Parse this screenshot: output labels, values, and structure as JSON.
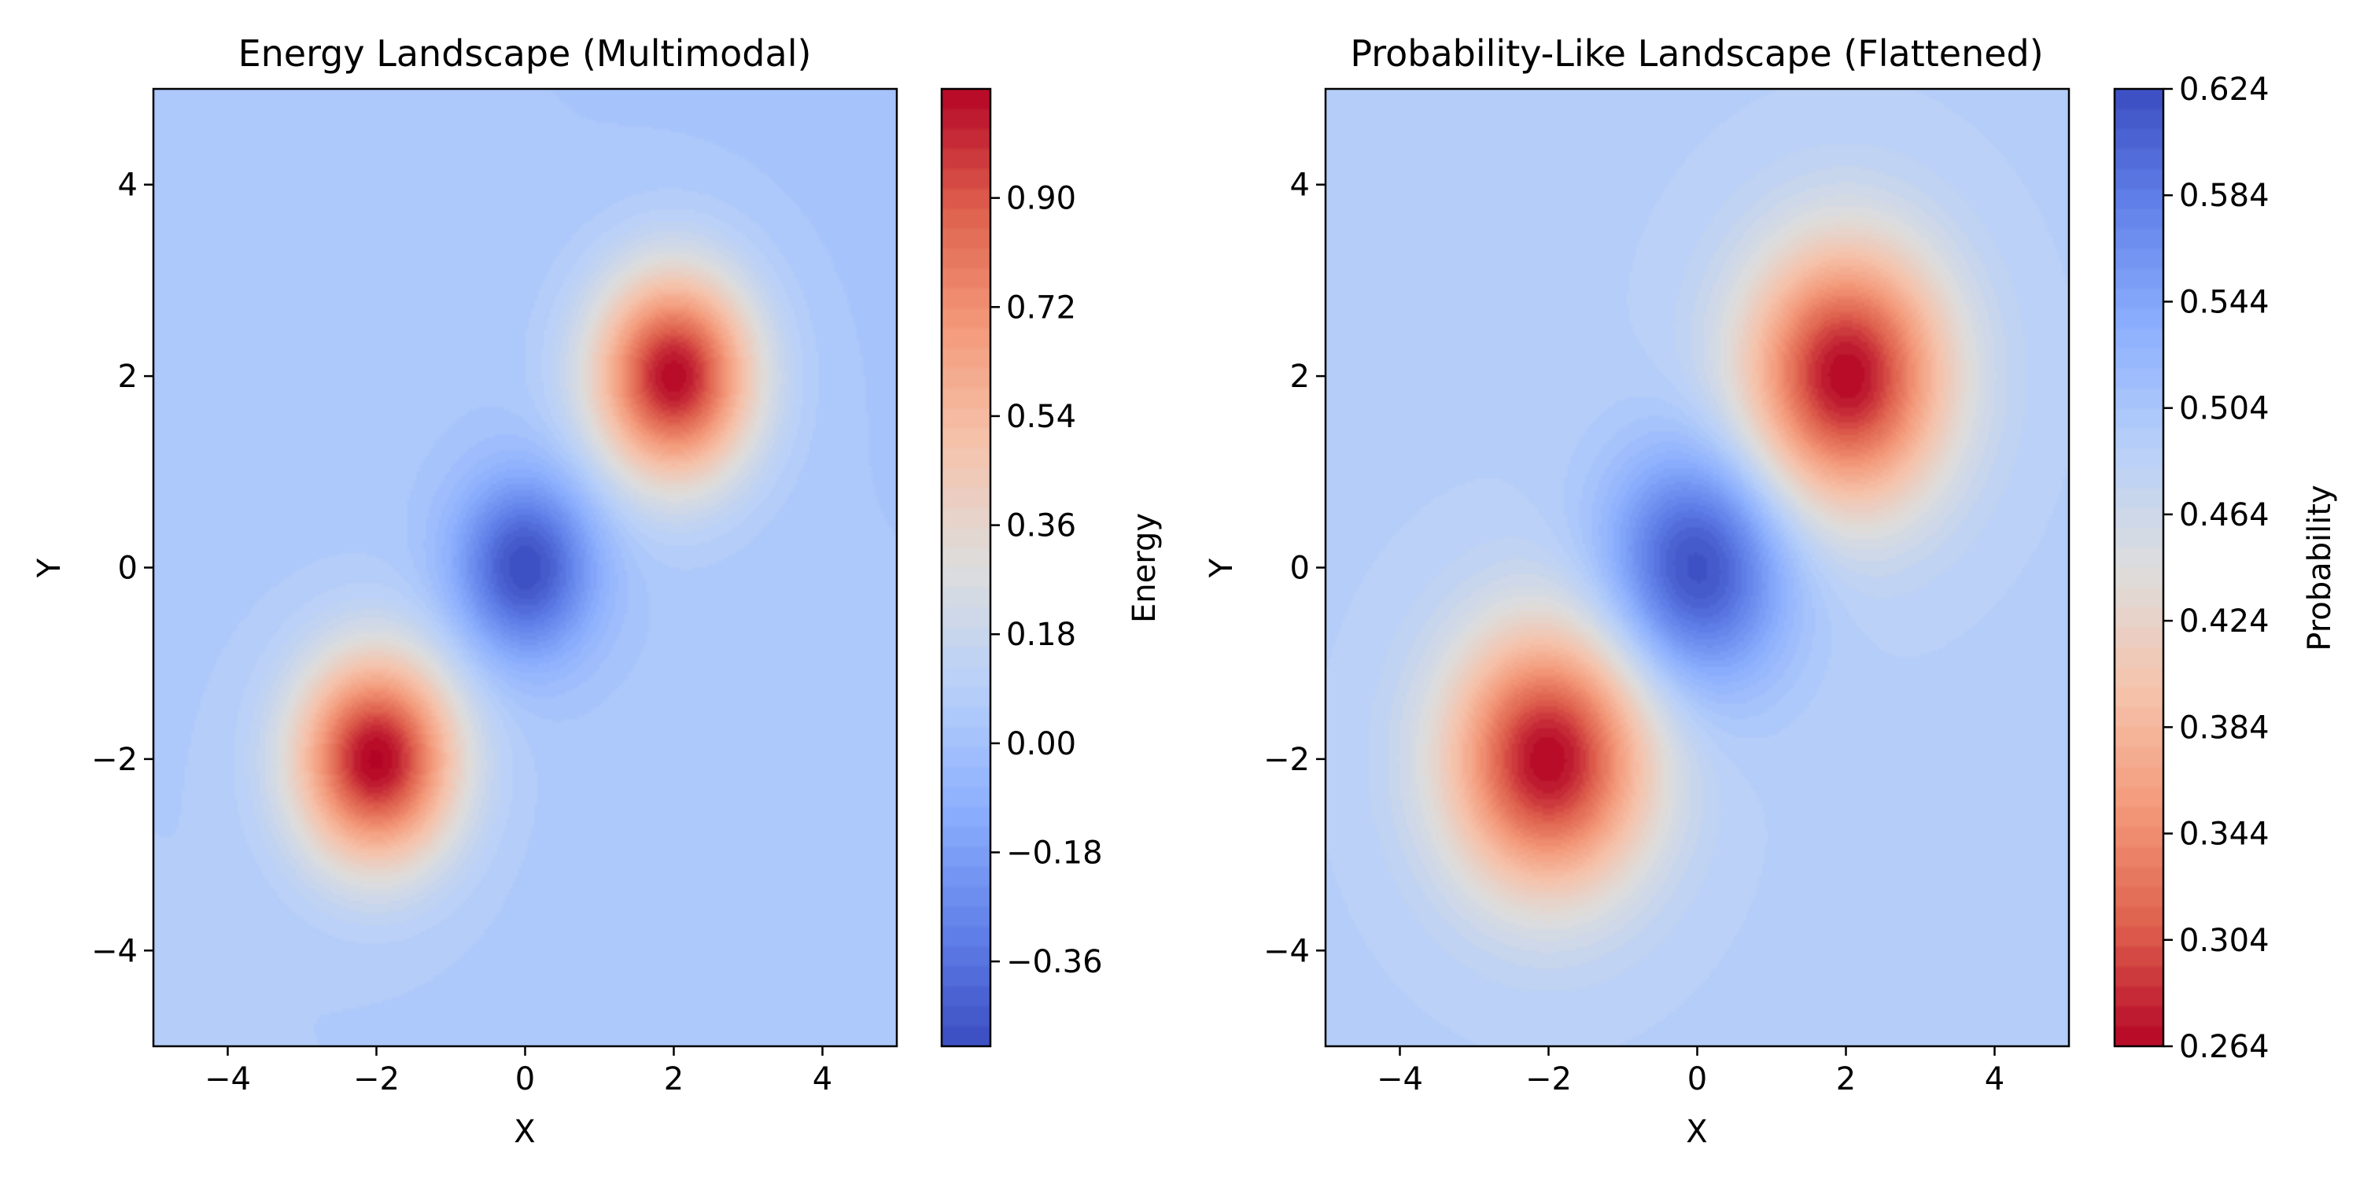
{
  "chart_data": [
    {
      "type": "heatmap",
      "title": "Energy Landscape (Multimodal)",
      "xlabel": "X",
      "ylabel": "Y",
      "xlim": [
        -5,
        5
      ],
      "ylim": [
        -5,
        5
      ],
      "xticks": [
        "−4",
        "−2",
        "0",
        "2",
        "4"
      ],
      "yticks": [
        "−4",
        "−2",
        "0",
        "2",
        "4"
      ],
      "xtick_values": [
        -4,
        -2,
        0,
        2,
        4
      ],
      "ytick_values": [
        -4,
        -2,
        0,
        2,
        4
      ],
      "colormap": "coolwarm",
      "colorbar": {
        "label": "Energy",
        "range": [
          -0.5,
          1.08
        ],
        "ticks": [
          "−0.36",
          "−0.18",
          "0.00",
          "0.18",
          "0.36",
          "0.54",
          "0.72",
          "0.90"
        ],
        "tick_values": [
          -0.36,
          -0.18,
          0.0,
          0.18,
          0.36,
          0.54,
          0.72,
          0.9
        ]
      },
      "features": [
        {
          "kind": "peak",
          "x": 2,
          "y": 2,
          "value": 1.08,
          "sigma": 0.75
        },
        {
          "kind": "peak",
          "x": -2,
          "y": -2,
          "value": 1.08,
          "sigma": 0.75
        },
        {
          "kind": "well",
          "x": 0,
          "y": 0,
          "value": -0.5,
          "sigma": 0.65
        }
      ],
      "baseline": {
        "value": 0.04,
        "gradient_x": -0.0025,
        "gradient_y": -0.0025
      }
    },
    {
      "type": "heatmap",
      "title": "Probability-Like Landscape (Flattened)",
      "xlabel": "X",
      "ylabel": "Y",
      "xlim": [
        -5,
        5
      ],
      "ylim": [
        -5,
        5
      ],
      "xticks": [
        "−4",
        "−2",
        "0",
        "2",
        "4"
      ],
      "yticks": [
        "−4",
        "−2",
        "0",
        "2",
        "4"
      ],
      "xtick_values": [
        -4,
        -2,
        0,
        2,
        4
      ],
      "ytick_values": [
        -4,
        -2,
        0,
        2,
        4
      ],
      "colormap": "coolwarm_r",
      "colorbar": {
        "label": "Probability",
        "range": [
          0.264,
          0.624
        ],
        "ticks": [
          "0.264",
          "0.304",
          "0.344",
          "0.384",
          "0.424",
          "0.464",
          "0.504",
          "0.544",
          "0.584",
          "0.624"
        ],
        "tick_values": [
          0.264,
          0.304,
          0.344,
          0.384,
          0.424,
          0.464,
          0.504,
          0.544,
          0.584,
          0.624
        ]
      },
      "features": [
        {
          "kind": "peak",
          "x": 2,
          "y": 2,
          "value": 0.264,
          "sigma": 0.95
        },
        {
          "kind": "peak",
          "x": -2,
          "y": -2,
          "value": 0.264,
          "sigma": 0.95
        },
        {
          "kind": "well",
          "x": 0,
          "y": 0,
          "value": 0.624,
          "sigma": 0.85
        }
      ],
      "baseline": {
        "value": 0.49,
        "gradient_x": 0,
        "gradient_y": 0
      }
    }
  ]
}
